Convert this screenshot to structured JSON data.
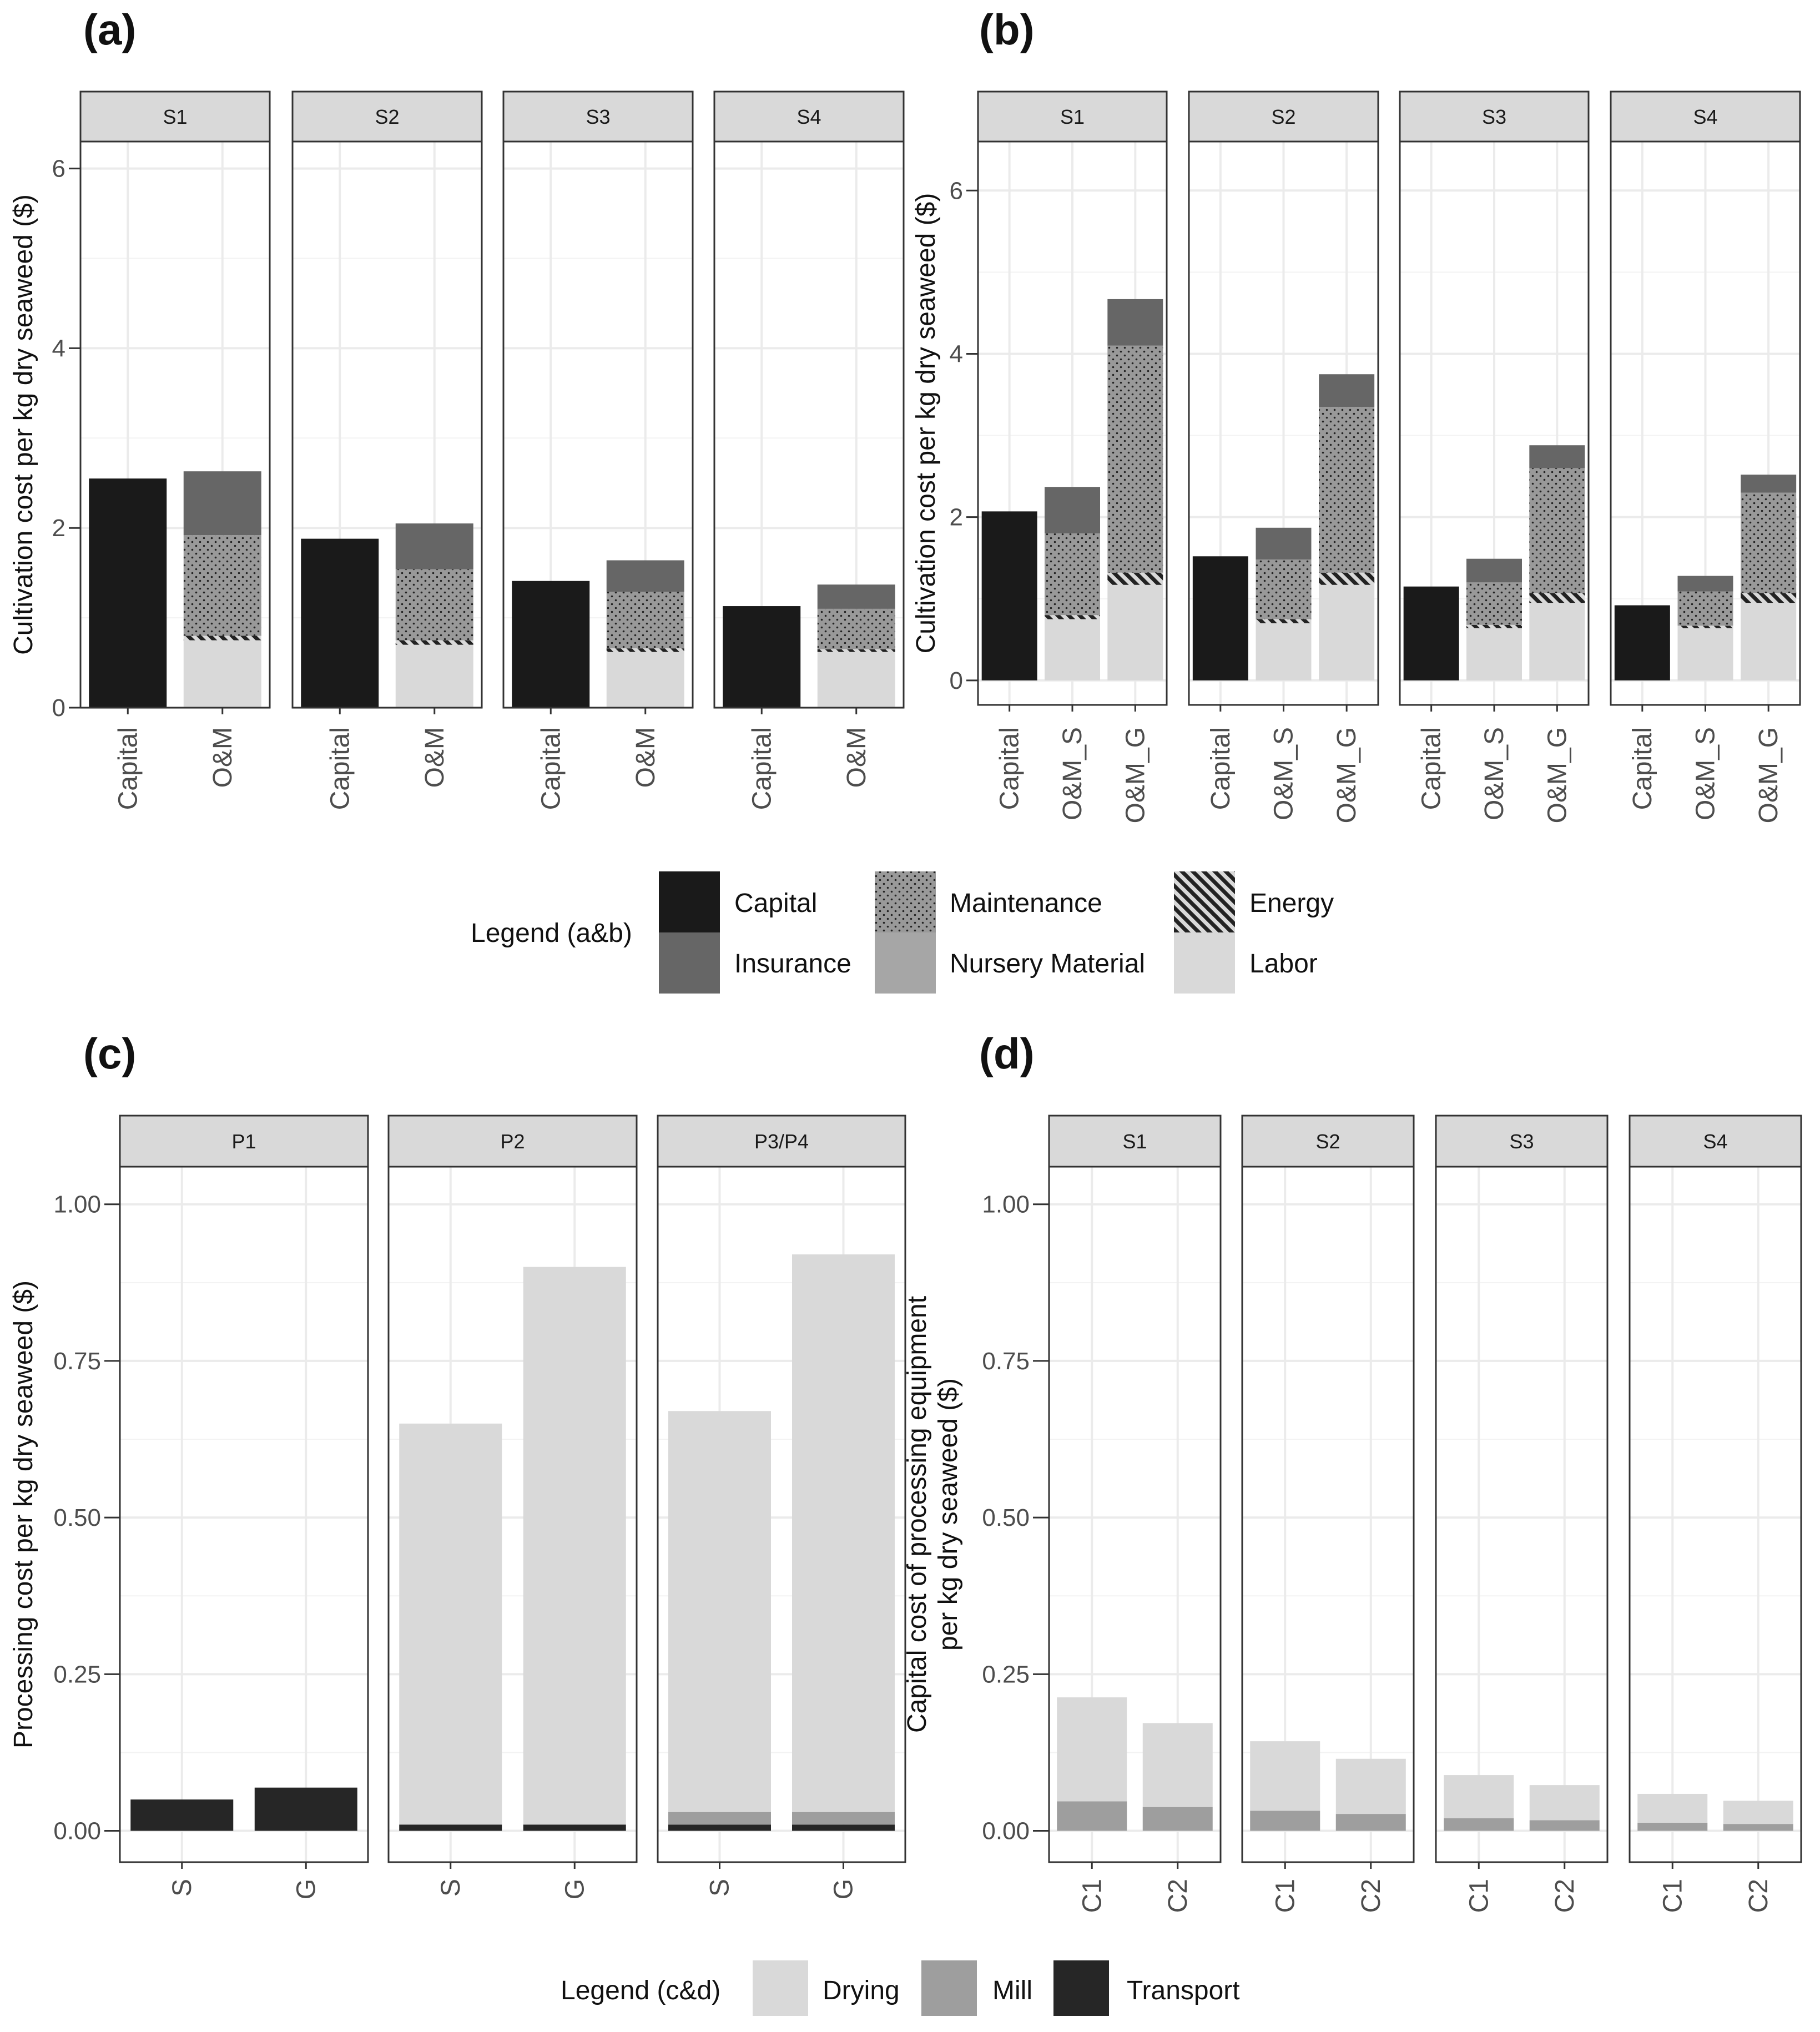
{
  "panels": {
    "a": {
      "tag": "(a)"
    },
    "b": {
      "tag": "(b)"
    },
    "c": {
      "tag": "(c)"
    },
    "d": {
      "tag": "(d)"
    }
  },
  "colors": {
    "Capital": "#1a1a1a",
    "Insurance": "#666666",
    "Maintenance": "#999999",
    "Nursery Material": "#a6a6a6",
    "Energy": "#333333",
    "Labor": "#d9d9d9",
    "Drying": "#d9d9d9",
    "Mill": "#9e9e9e",
    "Transport": "#262626"
  },
  "legend_ab": {
    "title": "Legend (a&b)",
    "items": [
      {
        "key": "Capital",
        "label": "Capital",
        "pattern": "solid"
      },
      {
        "key": "Insurance",
        "label": "Insurance",
        "pattern": "solid"
      },
      {
        "key": "Maintenance",
        "label": "Maintenance",
        "pattern": "dots"
      },
      {
        "key": "Nursery Material",
        "label": "Nursery Material",
        "pattern": "solid"
      },
      {
        "key": "Energy",
        "label": "Energy",
        "pattern": "hatch"
      },
      {
        "key": "Labor",
        "label": "Labor",
        "pattern": "solid"
      }
    ]
  },
  "legend_cd": {
    "title": "Legend (c&d)",
    "items": [
      {
        "key": "Drying",
        "label": "Drying"
      },
      {
        "key": "Mill",
        "label": "Mill"
      },
      {
        "key": "Transport",
        "label": "Transport"
      }
    ]
  },
  "chart_data": [
    {
      "panel": "a",
      "type": "bar",
      "stacked": true,
      "ylabel": "Cultivation cost per kg dry seaweed ($)",
      "ylim": [
        0,
        6.3
      ],
      "yticks": [
        0,
        2,
        4,
        6
      ],
      "stack_order": [
        "Labor",
        "Energy",
        "Maintenance",
        "Insurance",
        "Capital"
      ],
      "facets": [
        {
          "name": "S1",
          "bars": [
            {
              "x": "Capital",
              "segments": {
                "Capital": 2.55
              }
            },
            {
              "x": "O&M",
              "segments": {
                "Labor": 0.75,
                "Energy": 0.05,
                "Maintenance": 1.12,
                "Insurance": 0.71
              }
            }
          ]
        },
        {
          "name": "S2",
          "bars": [
            {
              "x": "Capital",
              "segments": {
                "Capital": 1.88
              }
            },
            {
              "x": "O&M",
              "segments": {
                "Labor": 0.7,
                "Energy": 0.05,
                "Maintenance": 0.79,
                "Insurance": 0.51
              }
            }
          ]
        },
        {
          "name": "S3",
          "bars": [
            {
              "x": "Capital",
              "segments": {
                "Capital": 1.41
              }
            },
            {
              "x": "O&M",
              "segments": {
                "Labor": 0.62,
                "Energy": 0.04,
                "Maintenance": 0.63,
                "Insurance": 0.35
              }
            }
          ]
        },
        {
          "name": "S4",
          "bars": [
            {
              "x": "Capital",
              "segments": {
                "Capital": 1.13
              }
            },
            {
              "x": "O&M",
              "segments": {
                "Labor": 0.62,
                "Energy": 0.03,
                "Maintenance": 0.45,
                "Insurance": 0.27
              }
            }
          ]
        }
      ]
    },
    {
      "panel": "b",
      "type": "bar",
      "stacked": true,
      "ylabel": "Cultivation cost per kg dry seaweed ($)",
      "ylim": [
        -0.3,
        6.6
      ],
      "yticks": [
        0,
        2,
        4,
        6
      ],
      "stack_order": [
        "Labor",
        "Energy",
        "Maintenance",
        "Insurance",
        "Capital"
      ],
      "facets": [
        {
          "name": "S1",
          "bars": [
            {
              "x": "Capital",
              "segments": {
                "Capital": 2.07
              }
            },
            {
              "x": "O&M_S",
              "segments": {
                "Labor": 0.75,
                "Energy": 0.05,
                "Maintenance": 1.0,
                "Insurance": 0.57
              }
            },
            {
              "x": "O&M_G",
              "segments": {
                "Labor": 1.17,
                "Energy": 0.15,
                "Maintenance": 2.78,
                "Insurance": 0.57
              }
            }
          ]
        },
        {
          "name": "S2",
          "bars": [
            {
              "x": "Capital",
              "segments": {
                "Capital": 1.52
              }
            },
            {
              "x": "O&M_S",
              "segments": {
                "Labor": 0.7,
                "Energy": 0.05,
                "Maintenance": 0.73,
                "Insurance": 0.39
              }
            },
            {
              "x": "O&M_G",
              "segments": {
                "Labor": 1.17,
                "Energy": 0.15,
                "Maintenance": 2.03,
                "Insurance": 0.4
              }
            }
          ]
        },
        {
          "name": "S3",
          "bars": [
            {
              "x": "Capital",
              "segments": {
                "Capital": 1.15
              }
            },
            {
              "x": "O&M_S",
              "segments": {
                "Labor": 0.64,
                "Energy": 0.04,
                "Maintenance": 0.52,
                "Insurance": 0.29
              }
            },
            {
              "x": "O&M_G",
              "segments": {
                "Labor": 0.95,
                "Energy": 0.12,
                "Maintenance": 1.53,
                "Insurance": 0.28
              }
            }
          ]
        },
        {
          "name": "S4",
          "bars": [
            {
              "x": "Capital",
              "segments": {
                "Capital": 0.92
              }
            },
            {
              "x": "O&M_S",
              "segments": {
                "Labor": 0.64,
                "Energy": 0.03,
                "Maintenance": 0.42,
                "Insurance": 0.19
              }
            },
            {
              "x": "O&M_G",
              "segments": {
                "Labor": 0.95,
                "Energy": 0.12,
                "Maintenance": 1.23,
                "Insurance": 0.22
              }
            }
          ]
        }
      ]
    },
    {
      "panel": "c",
      "type": "bar",
      "stacked": true,
      "ylabel": "Processing cost per kg dry seaweed ($)",
      "ylim": [
        -0.05,
        1.06
      ],
      "yticks": [
        0.0,
        0.25,
        0.5,
        0.75,
        1.0
      ],
      "ytick_labels": [
        "0.00",
        "0.25",
        "0.50",
        "0.75",
        "1.00"
      ],
      "stack_order": [
        "Transport",
        "Mill",
        "Drying"
      ],
      "facets": [
        {
          "name": "P1",
          "bars": [
            {
              "x": "S",
              "segments": {
                "Transport": 0.05
              }
            },
            {
              "x": "G",
              "segments": {
                "Transport": 0.069
              }
            }
          ]
        },
        {
          "name": "P2",
          "bars": [
            {
              "x": "S",
              "segments": {
                "Transport": 0.01,
                "Drying": 0.64
              }
            },
            {
              "x": "G",
              "segments": {
                "Transport": 0.01,
                "Drying": 0.89
              }
            }
          ]
        },
        {
          "name": "P3/P4",
          "bars": [
            {
              "x": "S",
              "segments": {
                "Transport": 0.01,
                "Mill": 0.02,
                "Drying": 0.64
              }
            },
            {
              "x": "G",
              "segments": {
                "Transport": 0.01,
                "Mill": 0.02,
                "Drying": 0.89
              }
            }
          ]
        }
      ]
    },
    {
      "panel": "d",
      "type": "bar",
      "stacked": true,
      "ylabel": [
        "Capital cost of processing equipment",
        "per kg dry seaweed ($)"
      ],
      "ylim": [
        -0.05,
        1.06
      ],
      "yticks": [
        0.0,
        0.25,
        0.5,
        0.75,
        1.0
      ],
      "ytick_labels": [
        "0.00",
        "0.25",
        "0.50",
        "0.75",
        "1.00"
      ],
      "stack_order": [
        "Mill",
        "Drying"
      ],
      "facets": [
        {
          "name": "S1",
          "bars": [
            {
              "x": "C1",
              "segments": {
                "Mill": 0.047,
                "Drying": 0.166
              }
            },
            {
              "x": "C2",
              "segments": {
                "Mill": 0.038,
                "Drying": 0.134
              }
            }
          ]
        },
        {
          "name": "S2",
          "bars": [
            {
              "x": "C1",
              "segments": {
                "Mill": 0.032,
                "Drying": 0.111
              }
            },
            {
              "x": "C2",
              "segments": {
                "Mill": 0.027,
                "Drying": 0.088
              }
            }
          ]
        },
        {
          "name": "S3",
          "bars": [
            {
              "x": "C1",
              "segments": {
                "Mill": 0.02,
                "Drying": 0.069
              }
            },
            {
              "x": "C2",
              "segments": {
                "Mill": 0.017,
                "Drying": 0.056
              }
            }
          ]
        },
        {
          "name": "S4",
          "bars": [
            {
              "x": "C1",
              "segments": {
                "Mill": 0.013,
                "Drying": 0.046
              }
            },
            {
              "x": "C2",
              "segments": {
                "Mill": 0.011,
                "Drying": 0.037
              }
            }
          ]
        }
      ]
    }
  ]
}
